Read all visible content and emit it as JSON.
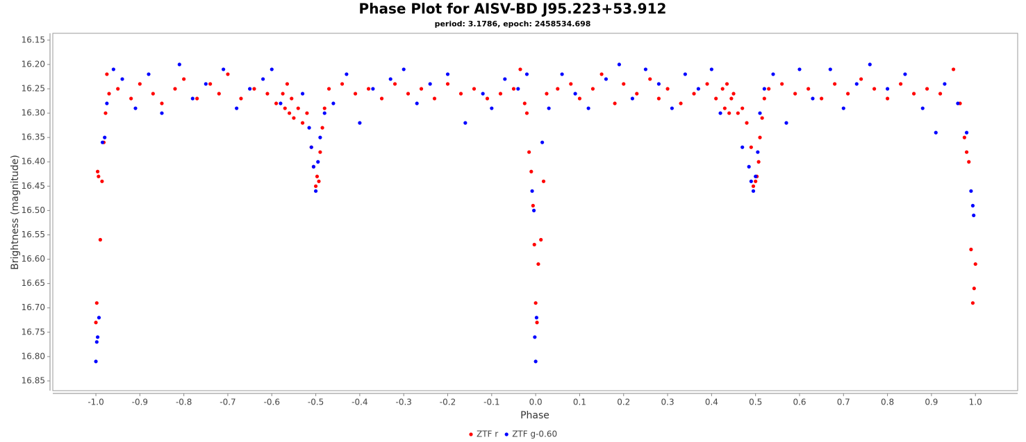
{
  "chart_data": {
    "type": "scatter",
    "title": "Phase Plot for AISV-BD J95.223+53.912",
    "subtitle": "period: 3.1786, epoch: 2458534.698",
    "x_label": "Phase",
    "y_label": "Brightness (magnitude)",
    "y_inverted": true,
    "xlim": [
      -1.098,
      1.096
    ],
    "ylim": [
      16.136,
      16.87
    ],
    "xticks": [
      {
        "value": -1.0,
        "label": "-1.0"
      },
      -0.9,
      -0.8,
      -0.7,
      -0.6,
      -0.5,
      -0.4,
      -0.3,
      -0.2,
      -0.1,
      {
        "value": 0.0,
        "label": "0.0"
      },
      0.1,
      0.2,
      0.3,
      0.4,
      0.5,
      0.6,
      0.7,
      0.8,
      0.9,
      {
        "value": 1.0,
        "label": "1.0"
      }
    ],
    "yticks": [
      16.15,
      {
        "value": 16.2,
        "label": "16.20"
      },
      16.25,
      {
        "value": 16.3,
        "label": "16.30"
      },
      16.35,
      {
        "value": 16.4,
        "label": "16.40"
      },
      16.45,
      {
        "value": 16.5,
        "label": "16.50"
      },
      16.55,
      {
        "value": 16.6,
        "label": "16.60"
      },
      16.65,
      {
        "value": 16.7,
        "label": "16.70"
      },
      16.75,
      {
        "value": 16.8,
        "label": "16.80"
      },
      16.85
    ],
    "series": [
      {
        "name": "ZTF r",
        "color": "#ff0000",
        "x": [
          -1.0,
          -0.998,
          -0.996,
          -0.994,
          -0.99,
          -0.986,
          -0.982,
          -0.978,
          -0.975,
          -0.97,
          -0.95,
          -0.92,
          -0.9,
          -0.87,
          -0.85,
          -0.82,
          -0.8,
          -0.77,
          -0.74,
          -0.72,
          -0.7,
          -0.67,
          -0.64,
          -0.61,
          -0.59,
          -0.575,
          -0.57,
          -0.565,
          -0.56,
          -0.555,
          -0.55,
          -0.54,
          -0.53,
          -0.52,
          -0.51,
          -0.505,
          -0.5,
          -0.497,
          -0.493,
          -0.49,
          -0.485,
          -0.48,
          -0.47,
          -0.44,
          -0.41,
          -0.38,
          -0.35,
          -0.32,
          -0.29,
          -0.26,
          -0.23,
          -0.2,
          -0.17,
          -0.14,
          -0.11,
          -0.08,
          -0.05,
          -0.035,
          -0.025,
          -0.02,
          -0.015,
          -0.01,
          -0.006,
          -0.003,
          0.0,
          0.003,
          0.006,
          0.012,
          0.018,
          0.025,
          0.05,
          0.08,
          0.1,
          0.13,
          0.15,
          0.18,
          0.2,
          0.23,
          0.26,
          0.28,
          0.3,
          0.33,
          0.36,
          0.39,
          0.41,
          0.425,
          0.43,
          0.435,
          0.44,
          0.445,
          0.45,
          0.46,
          0.47,
          0.48,
          0.49,
          0.495,
          0.5,
          0.503,
          0.507,
          0.51,
          0.515,
          0.52,
          0.53,
          0.56,
          0.59,
          0.62,
          0.65,
          0.68,
          0.71,
          0.74,
          0.77,
          0.8,
          0.83,
          0.86,
          0.89,
          0.92,
          0.95,
          0.965,
          0.975,
          0.98,
          0.985,
          0.99,
          0.994,
          0.997,
          1.0
        ],
        "values": [
          16.73,
          16.69,
          16.42,
          16.43,
          16.56,
          16.44,
          16.36,
          16.3,
          16.22,
          16.26,
          16.25,
          16.27,
          16.24,
          16.26,
          16.28,
          16.25,
          16.23,
          16.27,
          16.24,
          16.26,
          16.22,
          16.27,
          16.25,
          16.26,
          16.28,
          16.26,
          16.29,
          16.24,
          16.3,
          16.27,
          16.31,
          16.29,
          16.32,
          16.3,
          16.37,
          16.41,
          16.45,
          16.43,
          16.44,
          16.38,
          16.33,
          16.29,
          16.25,
          16.24,
          16.26,
          16.25,
          16.27,
          16.24,
          16.26,
          16.25,
          16.27,
          16.24,
          16.26,
          16.25,
          16.27,
          16.26,
          16.25,
          16.21,
          16.28,
          16.3,
          16.38,
          16.42,
          16.49,
          16.57,
          16.69,
          16.73,
          16.61,
          16.56,
          16.44,
          16.26,
          16.25,
          16.24,
          16.27,
          16.25,
          16.22,
          16.28,
          16.24,
          16.26,
          16.23,
          16.27,
          16.25,
          16.28,
          16.26,
          16.24,
          16.27,
          16.25,
          16.29,
          16.24,
          16.3,
          16.27,
          16.26,
          16.3,
          16.29,
          16.32,
          16.37,
          16.45,
          16.44,
          16.43,
          16.4,
          16.35,
          16.31,
          16.27,
          16.25,
          16.24,
          16.26,
          16.25,
          16.27,
          16.24,
          16.26,
          16.23,
          16.25,
          16.27,
          16.24,
          16.26,
          16.25,
          16.26,
          16.21,
          16.28,
          16.35,
          16.38,
          16.4,
          16.58,
          16.69,
          16.66,
          16.61
        ]
      },
      {
        "name": "ZTF g-0.60",
        "color": "#0000ff",
        "x": [
          -1.0,
          -0.998,
          -0.996,
          -0.993,
          -0.985,
          -0.98,
          -0.975,
          -0.96,
          -0.94,
          -0.91,
          -0.88,
          -0.85,
          -0.81,
          -0.78,
          -0.75,
          -0.71,
          -0.68,
          -0.65,
          -0.62,
          -0.6,
          -0.58,
          -0.53,
          -0.515,
          -0.51,
          -0.505,
          -0.5,
          -0.495,
          -0.49,
          -0.48,
          -0.46,
          -0.43,
          -0.4,
          -0.37,
          -0.33,
          -0.3,
          -0.27,
          -0.24,
          -0.2,
          -0.16,
          -0.12,
          -0.1,
          -0.07,
          -0.04,
          -0.02,
          -0.008,
          -0.004,
          -0.002,
          0.0,
          0.002,
          0.015,
          0.03,
          0.06,
          0.09,
          0.12,
          0.16,
          0.19,
          0.22,
          0.25,
          0.28,
          0.31,
          0.34,
          0.37,
          0.4,
          0.42,
          0.47,
          0.485,
          0.49,
          0.495,
          0.5,
          0.505,
          0.51,
          0.52,
          0.54,
          0.57,
          0.6,
          0.63,
          0.67,
          0.7,
          0.73,
          0.76,
          0.8,
          0.84,
          0.88,
          0.91,
          0.93,
          0.96,
          0.98,
          0.99,
          0.994,
          0.996
        ],
        "values": [
          16.81,
          16.77,
          16.76,
          16.72,
          16.36,
          16.35,
          16.28,
          16.21,
          16.23,
          16.29,
          16.22,
          16.3,
          16.2,
          16.27,
          16.24,
          16.21,
          16.29,
          16.25,
          16.23,
          16.21,
          16.28,
          16.26,
          16.33,
          16.37,
          16.41,
          16.46,
          16.4,
          16.35,
          16.3,
          16.28,
          16.22,
          16.32,
          16.25,
          16.23,
          16.21,
          16.28,
          16.24,
          16.22,
          16.32,
          16.26,
          16.29,
          16.23,
          16.25,
          16.22,
          16.46,
          16.5,
          16.76,
          16.81,
          16.72,
          16.36,
          16.29,
          16.22,
          16.26,
          16.29,
          16.23,
          16.2,
          16.27,
          16.21,
          16.24,
          16.29,
          16.22,
          16.25,
          16.21,
          16.3,
          16.37,
          16.41,
          16.44,
          16.46,
          16.43,
          16.38,
          16.3,
          16.25,
          16.22,
          16.32,
          16.21,
          16.27,
          16.21,
          16.29,
          16.24,
          16.2,
          16.25,
          16.22,
          16.29,
          16.34,
          16.24,
          16.28,
          16.34,
          16.46,
          16.49,
          16.51
        ]
      }
    ]
  }
}
